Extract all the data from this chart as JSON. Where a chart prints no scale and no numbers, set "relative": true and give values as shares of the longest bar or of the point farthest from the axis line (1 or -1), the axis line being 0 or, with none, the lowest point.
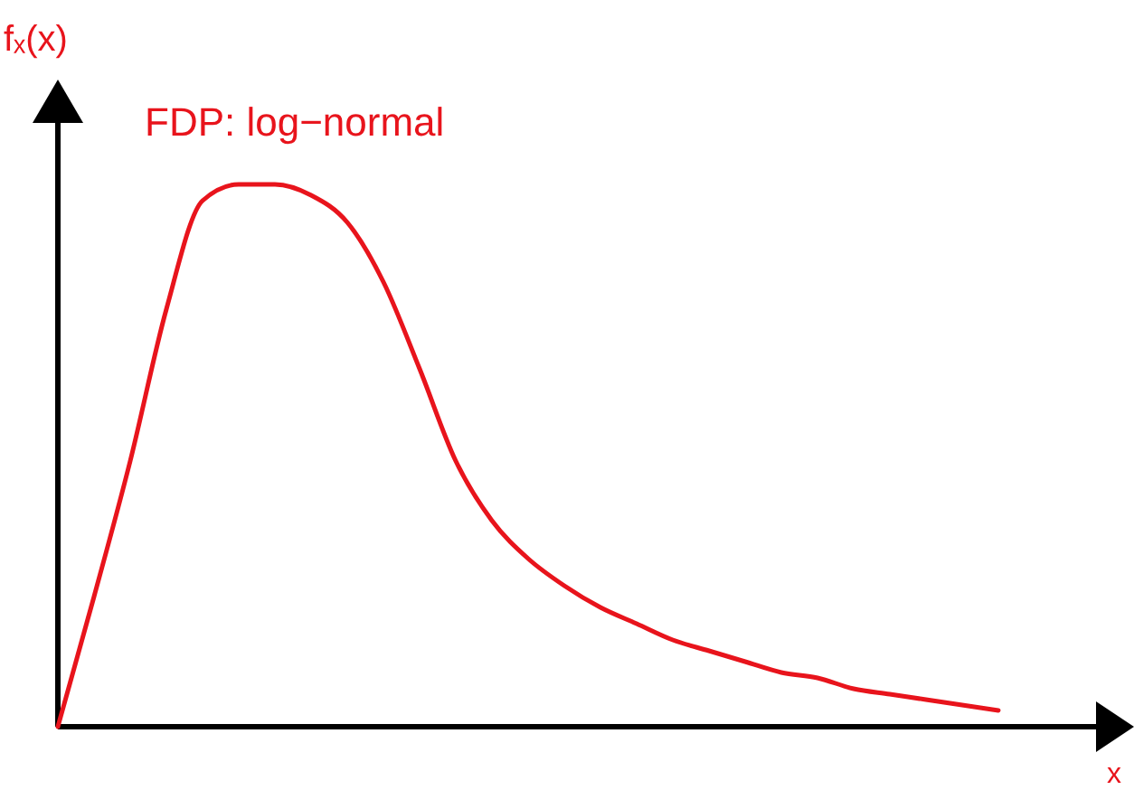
{
  "chart_data": {
    "type": "line",
    "title": "FDP: log−normal",
    "xlabel": "x",
    "ylabel": "fₓ(x)",
    "relative": true,
    "color": "#e8141c",
    "categories": [
      null,
      null,
      null,
      null,
      null,
      null,
      null,
      null,
      null,
      null,
      null,
      null,
      null,
      null,
      null,
      null,
      null,
      null,
      null,
      null,
      null,
      null,
      null,
      null,
      null,
      null,
      null
    ],
    "values": [
      0,
      0.24,
      0.49,
      0.77,
      0.97,
      1,
      1,
      0.98,
      0.93,
      0.82,
      0.66,
      0.49,
      0.38,
      0.31,
      0.26,
      0.22,
      0.19,
      0.16,
      0.14,
      0.12,
      0.1,
      0.09,
      0.07,
      0.06,
      0.05,
      0.04,
      0.03
    ]
  }
}
